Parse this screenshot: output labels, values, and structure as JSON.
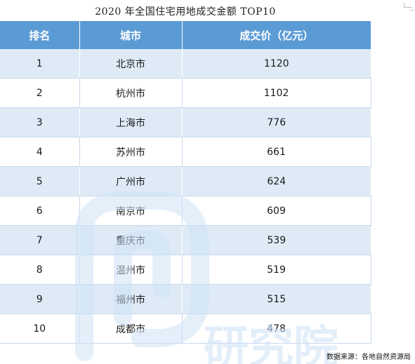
{
  "title": "2020 年全国住宅用地成交金额 TOP10",
  "table": {
    "headers": [
      "排名",
      "城市",
      "成交价（亿元）"
    ],
    "rows": [
      {
        "rank": "1",
        "city": "北京市",
        "value": "1120"
      },
      {
        "rank": "2",
        "city": "杭州市",
        "value": "1102"
      },
      {
        "rank": "3",
        "city": "上海市",
        "value": "776"
      },
      {
        "rank": "4",
        "city": "苏州市",
        "value": "661"
      },
      {
        "rank": "5",
        "city": "广州市",
        "value": "624"
      },
      {
        "rank": "6",
        "city": "南京市",
        "value": "609"
      },
      {
        "rank": "7",
        "city": "重庆市",
        "value": "539"
      },
      {
        "rank": "8",
        "city": "温州市",
        "value": "519"
      },
      {
        "rank": "9",
        "city": "福州市",
        "value": "515"
      },
      {
        "rank": "10",
        "city": "成都市",
        "value": "478"
      }
    ]
  },
  "source": "数据来源：各地自然资源局",
  "colors": {
    "header_bg": "#5b9bd5",
    "row_alt_bg": "#deebf7",
    "watermark": "#cfe3f6"
  },
  "watermark_text": "研究院"
}
